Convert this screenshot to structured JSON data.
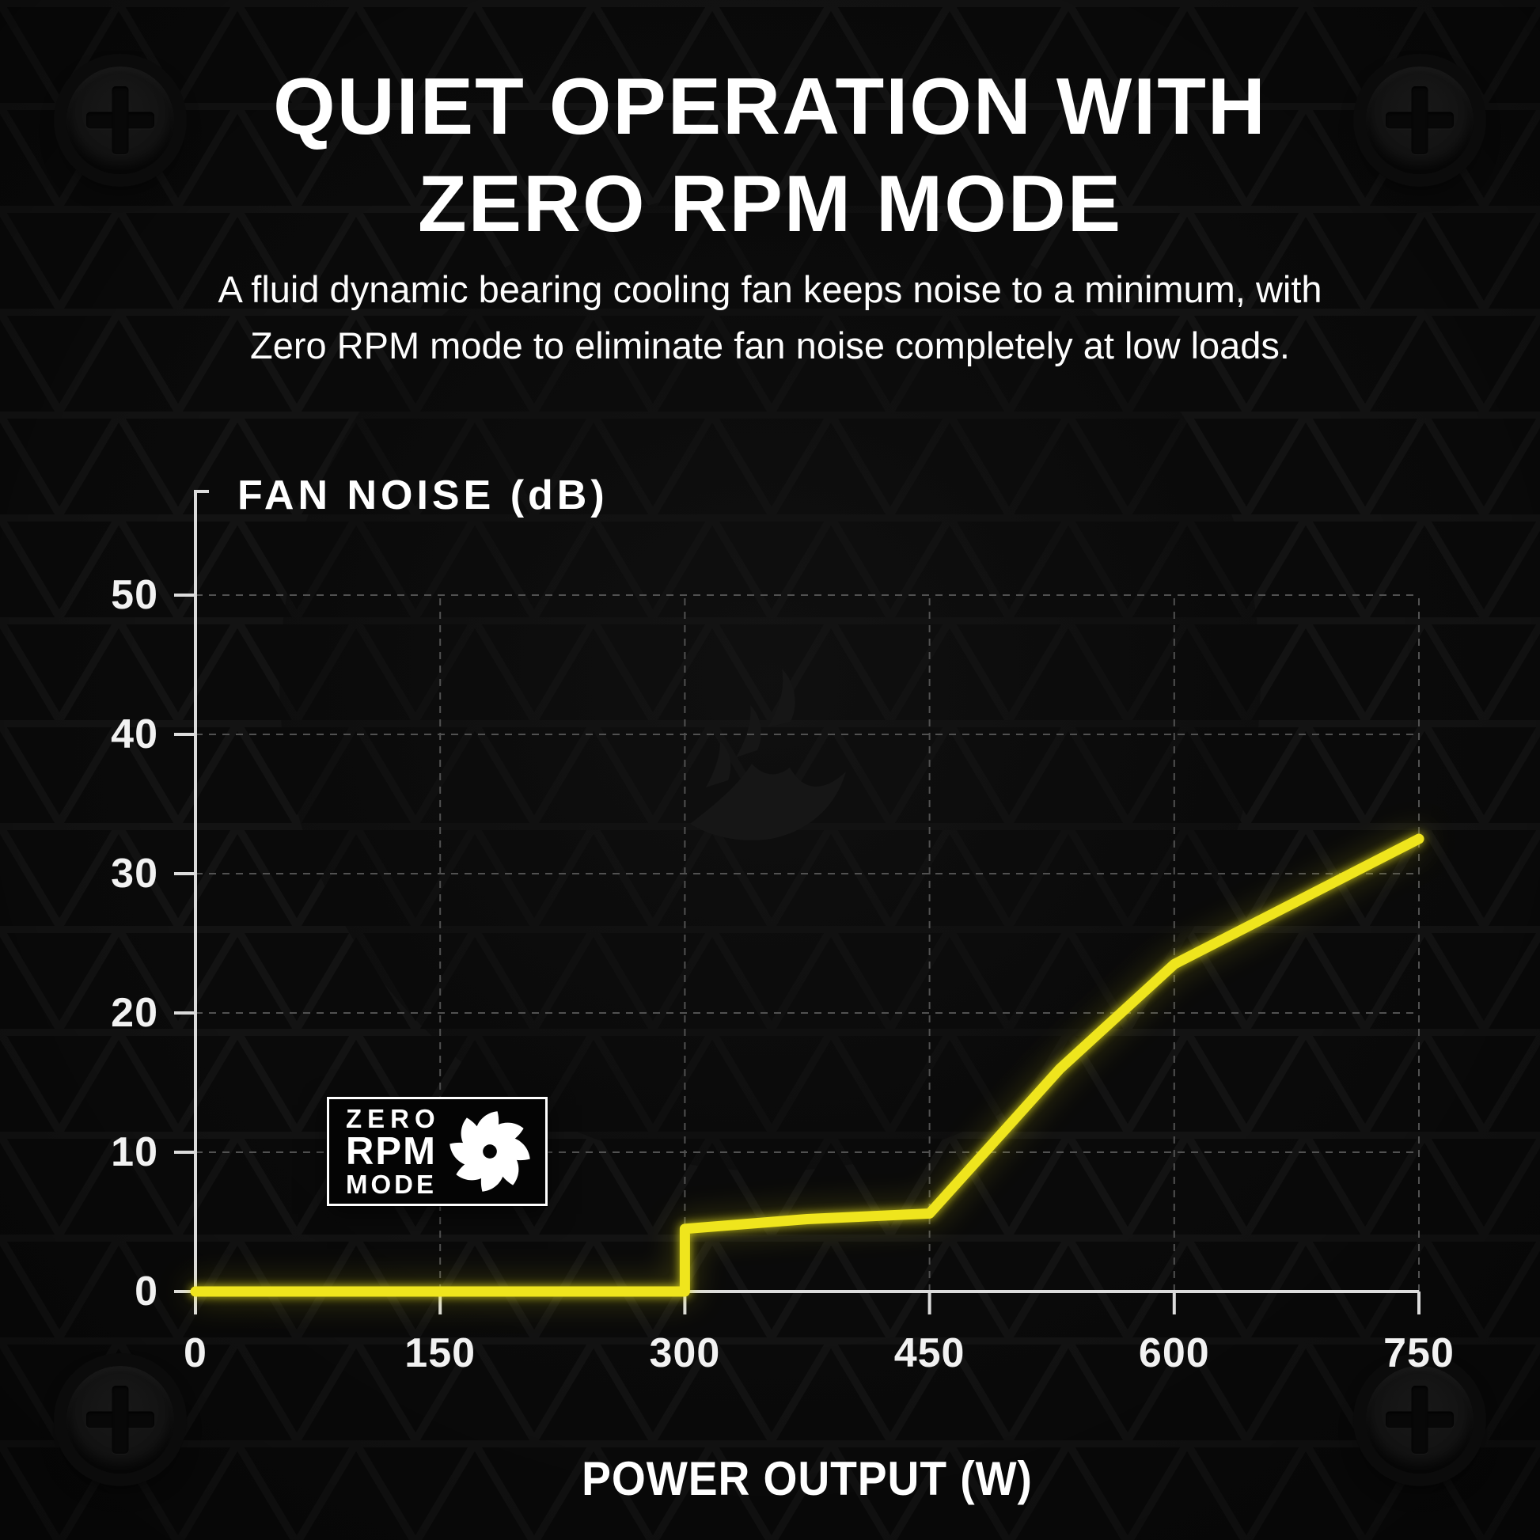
{
  "page": {
    "title_line1": "QUIET OPERATION WITH",
    "title_line2": "ZERO RPM MODE",
    "subtitle_line1": "A fluid dynamic bearing cooling fan keeps noise to a minimum, with",
    "subtitle_line2": "Zero RPM mode to eliminate fan noise completely at low loads."
  },
  "badge": {
    "line1": "ZERO",
    "line2": "RPM",
    "line3": "MODE",
    "icon": "fan-icon"
  },
  "decor": {
    "corner_screws": "phillips-screw-icon",
    "background_texture": "fan-grille-triangle-mesh",
    "watermark": "corsair-sails-logo"
  },
  "colors": {
    "background": "#0A0A0A",
    "line_yellow": "#EFE51D",
    "grid": "#515151",
    "axis": "#DCDCDC",
    "text": "#FFFFFF",
    "badge_background": "#040404"
  },
  "chart_data": {
    "type": "line",
    "title": "",
    "xlabel": "POWER OUTPUT (W)",
    "ylabel": "FAN NOISE (dB)",
    "xlim": [
      0,
      750
    ],
    "ylim": [
      0,
      50
    ],
    "x_ticks": [
      0,
      150,
      300,
      450,
      600,
      750
    ],
    "y_ticks": [
      0,
      10,
      20,
      30,
      40,
      50
    ],
    "grid": true,
    "legend": false,
    "series": [
      {
        "name": "Fan noise (dB)",
        "points": [
          [
            0,
            0
          ],
          [
            300,
            0
          ],
          [
            300,
            4.5
          ],
          [
            375,
            5.2
          ],
          [
            450,
            5.6
          ],
          [
            530,
            16
          ],
          [
            600,
            23.5
          ],
          [
            750,
            32.5
          ]
        ]
      }
    ]
  }
}
